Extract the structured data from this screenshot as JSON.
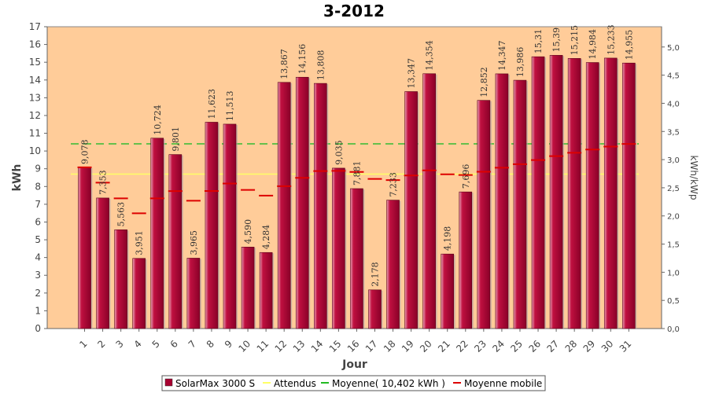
{
  "chart_data": {
    "type": "bar",
    "title": "3-2012",
    "xlabel": "Jour",
    "ylabel": "kWh",
    "ylabel_right": "kWh/kWp",
    "ylim": [
      0,
      17
    ],
    "ylim_right": [
      0,
      5.36
    ],
    "yticks": [
      0,
      1,
      2,
      3,
      4,
      5,
      6,
      7,
      8,
      9,
      10,
      11,
      12,
      13,
      14,
      15,
      16,
      17
    ],
    "yticks_right": [
      "0,0",
      "0,5",
      "1,0",
      "1,5",
      "2,0",
      "2,5",
      "3,0",
      "3,5",
      "4,0",
      "4,5",
      "5,0"
    ],
    "categories": [
      "1",
      "2",
      "3",
      "4",
      "5",
      "6",
      "7",
      "8",
      "9",
      "10",
      "11",
      "12",
      "13",
      "14",
      "15",
      "16",
      "17",
      "18",
      "19",
      "20",
      "21",
      "22",
      "23",
      "24",
      "25",
      "26",
      "27",
      "28",
      "29",
      "30",
      "31"
    ],
    "values": [
      9.078,
      7.353,
      5.563,
      3.951,
      10.724,
      9.801,
      3.965,
      11.623,
      11.513,
      4.59,
      4.284,
      13.867,
      14.156,
      13.808,
      9.035,
      7.881,
      2.178,
      7.233,
      13.347,
      14.354,
      4.198,
      7.696,
      12.852,
      14.347,
      13.986,
      15.31,
      15.39,
      15.215,
      14.984,
      15.233,
      14.955
    ],
    "data_labels": [
      "9,078",
      "7,353",
      "5,563",
      "3,951",
      "10,724",
      "9,801",
      "3,965",
      "11,623",
      "11,513",
      "4,590",
      "4,284",
      "13,867",
      "14,156",
      "13,808",
      "9,035",
      "7,881",
      "2,178",
      "7,233",
      "13,347",
      "14,354",
      "4,198",
      "7,696",
      "12,852",
      "14,347",
      "13,986",
      "15,31",
      "15,39",
      "15,215",
      "14,984",
      "15,233",
      "14,955"
    ],
    "expected": 8.7,
    "average": 10.402,
    "moving_average": [
      9.08,
      8.22,
      7.33,
      6.49,
      7.33,
      7.74,
      7.2,
      7.75,
      8.17,
      7.81,
      7.49,
      8.02,
      8.49,
      8.87,
      8.88,
      8.82,
      8.43,
      8.36,
      8.62,
      8.91,
      8.69,
      8.65,
      8.83,
      9.06,
      9.26,
      9.49,
      9.71,
      9.9,
      10.08,
      10.25,
      10.4
    ],
    "series": [
      {
        "name": "SolarMax 3000 S",
        "kind": "bar",
        "color": "#a80030"
      },
      {
        "name": "Attendus",
        "kind": "line",
        "color": "#ffff66"
      },
      {
        "name": "Moyenne( 10,402 kWh )",
        "kind": "line",
        "color": "#22bb22"
      },
      {
        "name": "Moyenne mobile",
        "kind": "line",
        "color": "#dd0000"
      }
    ],
    "grid": false,
    "legend_position": "bottom",
    "plot_background": "#ffcc99"
  }
}
